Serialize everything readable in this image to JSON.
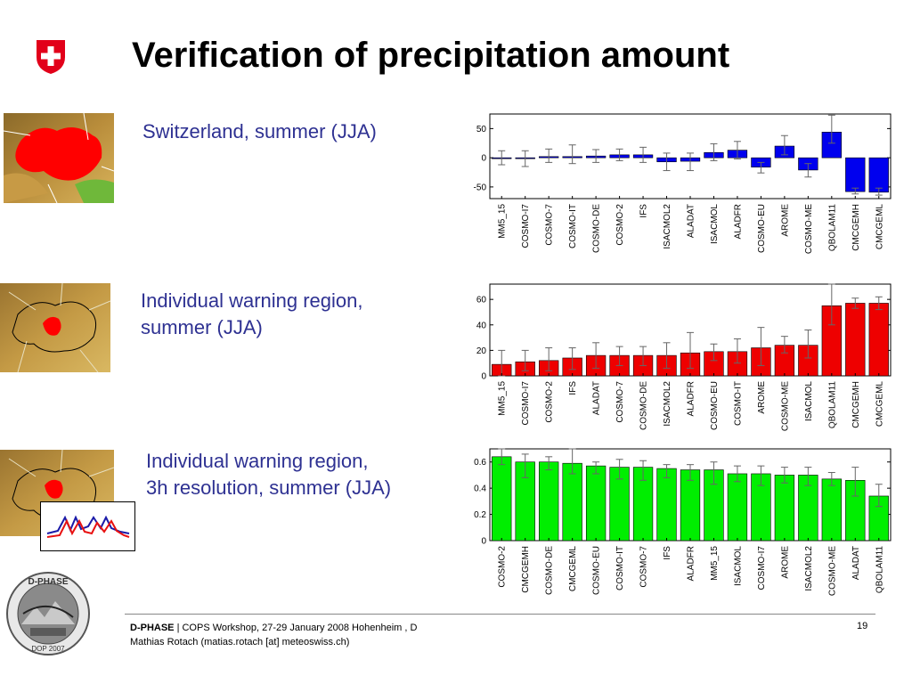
{
  "slide": {
    "title": "Verification of precipitation amount",
    "page_number": "19"
  },
  "panels": [
    {
      "caption_lines": [
        "Switzerland, summer (JJA)"
      ]
    },
    {
      "caption_lines": [
        "Individual warning region,",
        "summer (JJA)"
      ]
    },
    {
      "caption_lines": [
        "Individual warning region,",
        "3h resolution, summer (JJA)"
      ]
    }
  ],
  "footer": {
    "brand": "D-PHASE",
    "event": " | COPS Workshop, 27-29 January 2008 Hohenheim , D",
    "author": "Mathias Rotach (matias.rotach [at] meteoswiss.ch)"
  },
  "logos": {
    "swiss_emblem": "swiss-cross",
    "dphase_logo_text": [
      "D-PHASE",
      "DOP 2007"
    ]
  },
  "chart_data": [
    {
      "type": "bar",
      "color": "#0000ee",
      "ylim": [
        -70,
        75
      ],
      "yticks": [
        -50,
        0,
        50
      ],
      "categories": [
        "MM5_15",
        "COSMO-I7",
        "COSMO-7",
        "COSMO-IT",
        "COSMO-DE",
        "COSMO-2",
        "IFS",
        "ISACMOL2",
        "ALADAT",
        "ISACMOL",
        "ALADFR",
        "COSMO-EU",
        "AROME",
        "COSMO-ME",
        "QBOLAM11",
        "CMCGEMH",
        "CMCGEML"
      ],
      "values": [
        0,
        0,
        2,
        2,
        3,
        5,
        5,
        -7,
        -6,
        9,
        13,
        -16,
        20,
        -21,
        44,
        -58,
        -59
      ],
      "err_low": [
        -12,
        -15,
        -8,
        -10,
        -8,
        -5,
        -8,
        -22,
        -22,
        -5,
        -2,
        -26,
        5,
        -33,
        25,
        -62,
        -64
      ],
      "err_high": [
        12,
        12,
        15,
        22,
        14,
        15,
        18,
        8,
        8,
        24,
        28,
        -8,
        38,
        -10,
        73,
        -52,
        -52
      ]
    },
    {
      "type": "bar",
      "color": "#ee0000",
      "ylim": [
        0,
        72
      ],
      "yticks": [
        0,
        20,
        40,
        60
      ],
      "categories": [
        "MM5_15",
        "COSMO-I7",
        "COSMO-2",
        "IFS",
        "ALADAT",
        "COSMO-7",
        "COSMO-DE",
        "ISACMOL2",
        "ALADFR",
        "COSMO-EU",
        "COSMO-IT",
        "AROME",
        "COSMO-ME",
        "ISACMOL",
        "QBOLAM11",
        "CMCGEMH",
        "CMCGEML"
      ],
      "values": [
        9,
        11,
        12,
        14,
        16,
        16,
        16,
        16,
        18,
        19,
        19,
        22,
        24,
        24,
        55,
        57,
        57
      ],
      "err_low": [
        0,
        4,
        4,
        5,
        6,
        8,
        8,
        6,
        6,
        12,
        10,
        8,
        18,
        14,
        40,
        53,
        52
      ],
      "err_high": [
        20,
        20,
        22,
        22,
        26,
        23,
        23,
        26,
        34,
        25,
        29,
        38,
        31,
        36,
        72,
        61,
        62
      ]
    },
    {
      "type": "bar",
      "color": "#00ee00",
      "ylim": [
        0,
        0.7
      ],
      "yticks": [
        0,
        0.2,
        0.4,
        0.6
      ],
      "categories": [
        "COSMO-2",
        "CMCGEMH",
        "COSMO-DE",
        "CMCGEML",
        "COSMO-EU",
        "COSMO-IT",
        "COSMO-7",
        "IFS",
        "ALADFR",
        "MM5_15",
        "ISACMOL",
        "COSMO-I7",
        "AROME",
        "ISACMOL2",
        "COSMO-ME",
        "ALADAT",
        "QBOLAM11"
      ],
      "values": [
        0.64,
        0.6,
        0.6,
        0.59,
        0.57,
        0.56,
        0.56,
        0.55,
        0.54,
        0.54,
        0.51,
        0.51,
        0.5,
        0.5,
        0.47,
        0.46,
        0.34
      ],
      "err_low": [
        0.58,
        0.48,
        0.54,
        0.51,
        0.51,
        0.47,
        0.46,
        0.48,
        0.46,
        0.43,
        0.45,
        0.42,
        0.44,
        0.42,
        0.42,
        0.34,
        0.26
      ],
      "err_high": [
        0.7,
        0.66,
        0.64,
        0.7,
        0.6,
        0.62,
        0.61,
        0.58,
        0.58,
        0.6,
        0.57,
        0.57,
        0.56,
        0.56,
        0.52,
        0.56,
        0.43
      ]
    }
  ]
}
